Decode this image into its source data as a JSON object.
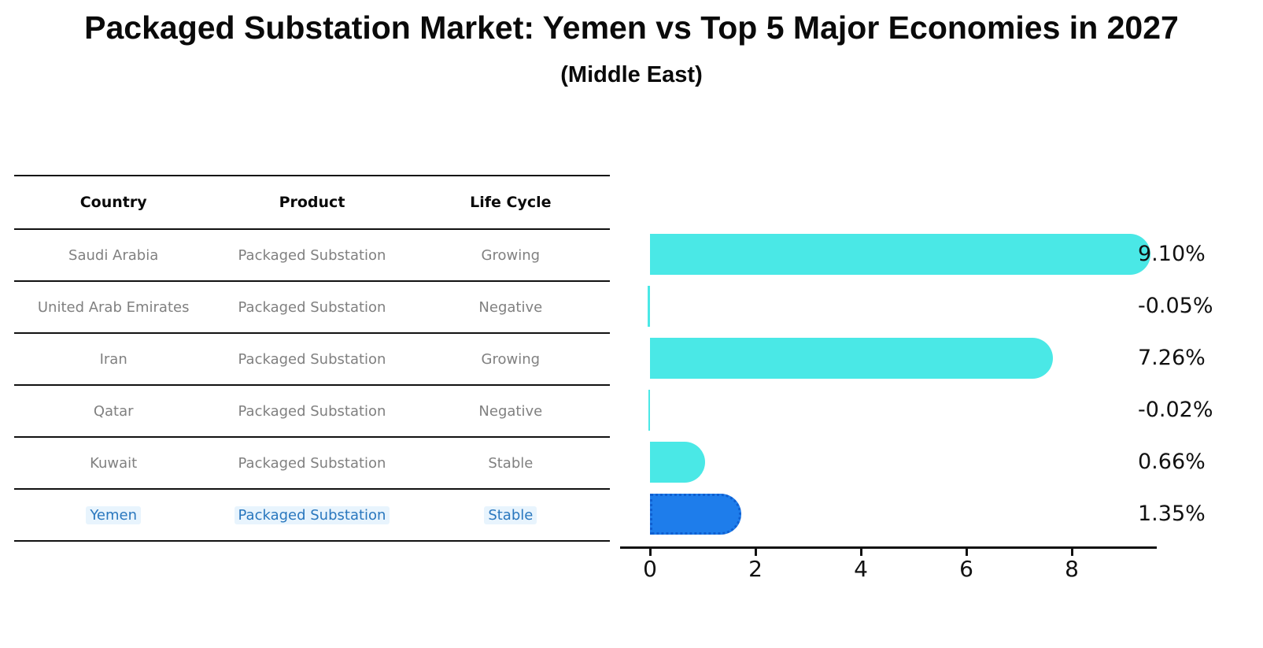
{
  "header": {
    "title": "Packaged Substation Market: Yemen vs Top 5 Major Economies in 2027",
    "subtitle": "(Middle East)"
  },
  "table": {
    "columns": [
      "Country",
      "Product",
      "Life Cycle"
    ],
    "rows": [
      {
        "country": "Saudi Arabia",
        "product": "Packaged Substation",
        "life_cycle": "Growing",
        "highlighted": false
      },
      {
        "country": "United Arab Emirates",
        "product": "Packaged Substation",
        "life_cycle": "Negative",
        "highlighted": false
      },
      {
        "country": "Iran",
        "product": "Packaged Substation",
        "life_cycle": "Growing",
        "highlighted": false
      },
      {
        "country": "Qatar",
        "product": "Packaged Substation",
        "life_cycle": "Negative",
        "highlighted": false
      },
      {
        "country": "Kuwait",
        "product": "Packaged Substation",
        "life_cycle": "Stable",
        "highlighted": false
      },
      {
        "country": "Yemen",
        "product": "Packaged Substation",
        "life_cycle": "Stable",
        "highlighted": true
      }
    ],
    "text_color": "#808080",
    "highlight_text_color": "#2977BE"
  },
  "chart_data": {
    "type": "bar",
    "orientation": "horizontal",
    "title": "Packaged Substation Market: Yemen vs Top 5 Major Economies in 2027",
    "subtitle": "(Middle East)",
    "categories": [
      "Saudi Arabia",
      "United Arab Emirates",
      "Iran",
      "Qatar",
      "Kuwait",
      "Yemen"
    ],
    "values": [
      9.1,
      -0.05,
      7.26,
      -0.02,
      0.66,
      1.35
    ],
    "value_labels": [
      "9.10%",
      "-0.05%",
      "7.26%",
      "-0.02%",
      "0.66%",
      "1.35%"
    ],
    "unit": "%",
    "xticks": [
      0,
      2,
      4,
      6,
      8
    ],
    "xlim": [
      -0.55,
      9.6
    ],
    "grid": false,
    "legend": false,
    "bar_color": "#4AE8E6",
    "target_index": 5,
    "target_bar_color": "#1E7DEB",
    "target_bar_border_color": "#0F5FD0"
  }
}
